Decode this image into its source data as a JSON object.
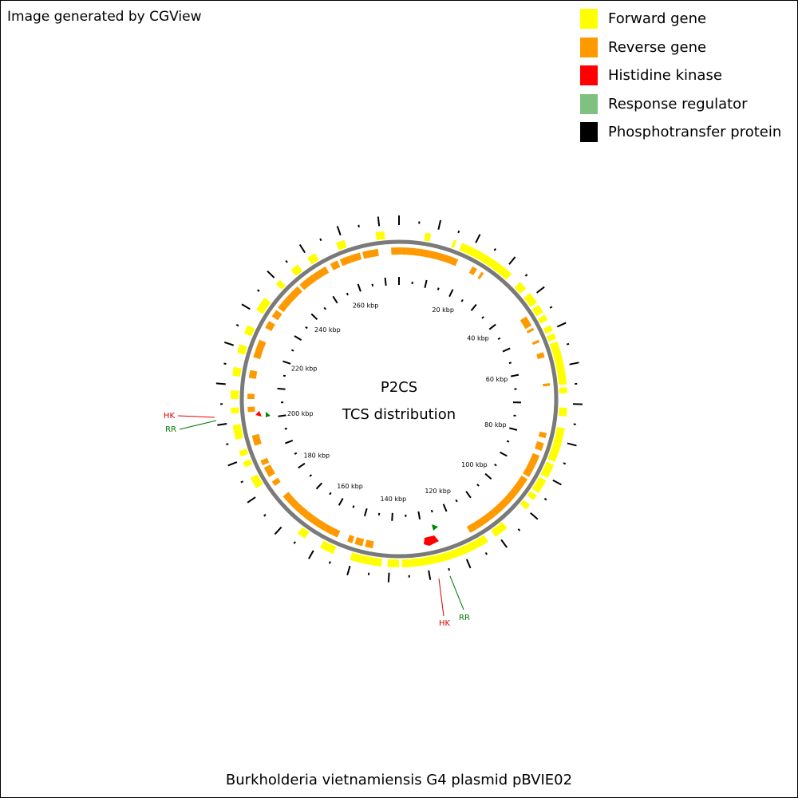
{
  "header": {
    "credit": "Image generated by CGView"
  },
  "legend": [
    {
      "label": "Forward gene",
      "color": "#FFFF00"
    },
    {
      "label": "Reverse gene",
      "color": "#FF9900"
    },
    {
      "label": "Histidine kinase",
      "color": "#FF0000"
    },
    {
      "label": "Response regulator",
      "color": "#80C080"
    },
    {
      "label": "Phosphotransfer protein",
      "color": "#000000"
    }
  ],
  "map": {
    "title_line1": "P2CS",
    "title_line2": "TCS distribution",
    "genome_length_kbp": 275,
    "ruler_labels": [
      "20 kbp",
      "40 kbp",
      "60 kbp",
      "80 kbp",
      "100 kbp",
      "120 kbp",
      "140 kbp",
      "160 kbp",
      "180 kbp",
      "200 kbp",
      "220 kbp",
      "240 kbp",
      "260 kbp"
    ],
    "annotations": [
      {
        "label": "HK",
        "color": "#DD0000"
      },
      {
        "label": "RR",
        "color": "#007700"
      },
      {
        "label": "HK",
        "color": "#DD0000"
      },
      {
        "label": "RR",
        "color": "#007700"
      }
    ]
  },
  "caption": "Burkholderia vietnamiensis G4 plasmid pBVIE02"
}
